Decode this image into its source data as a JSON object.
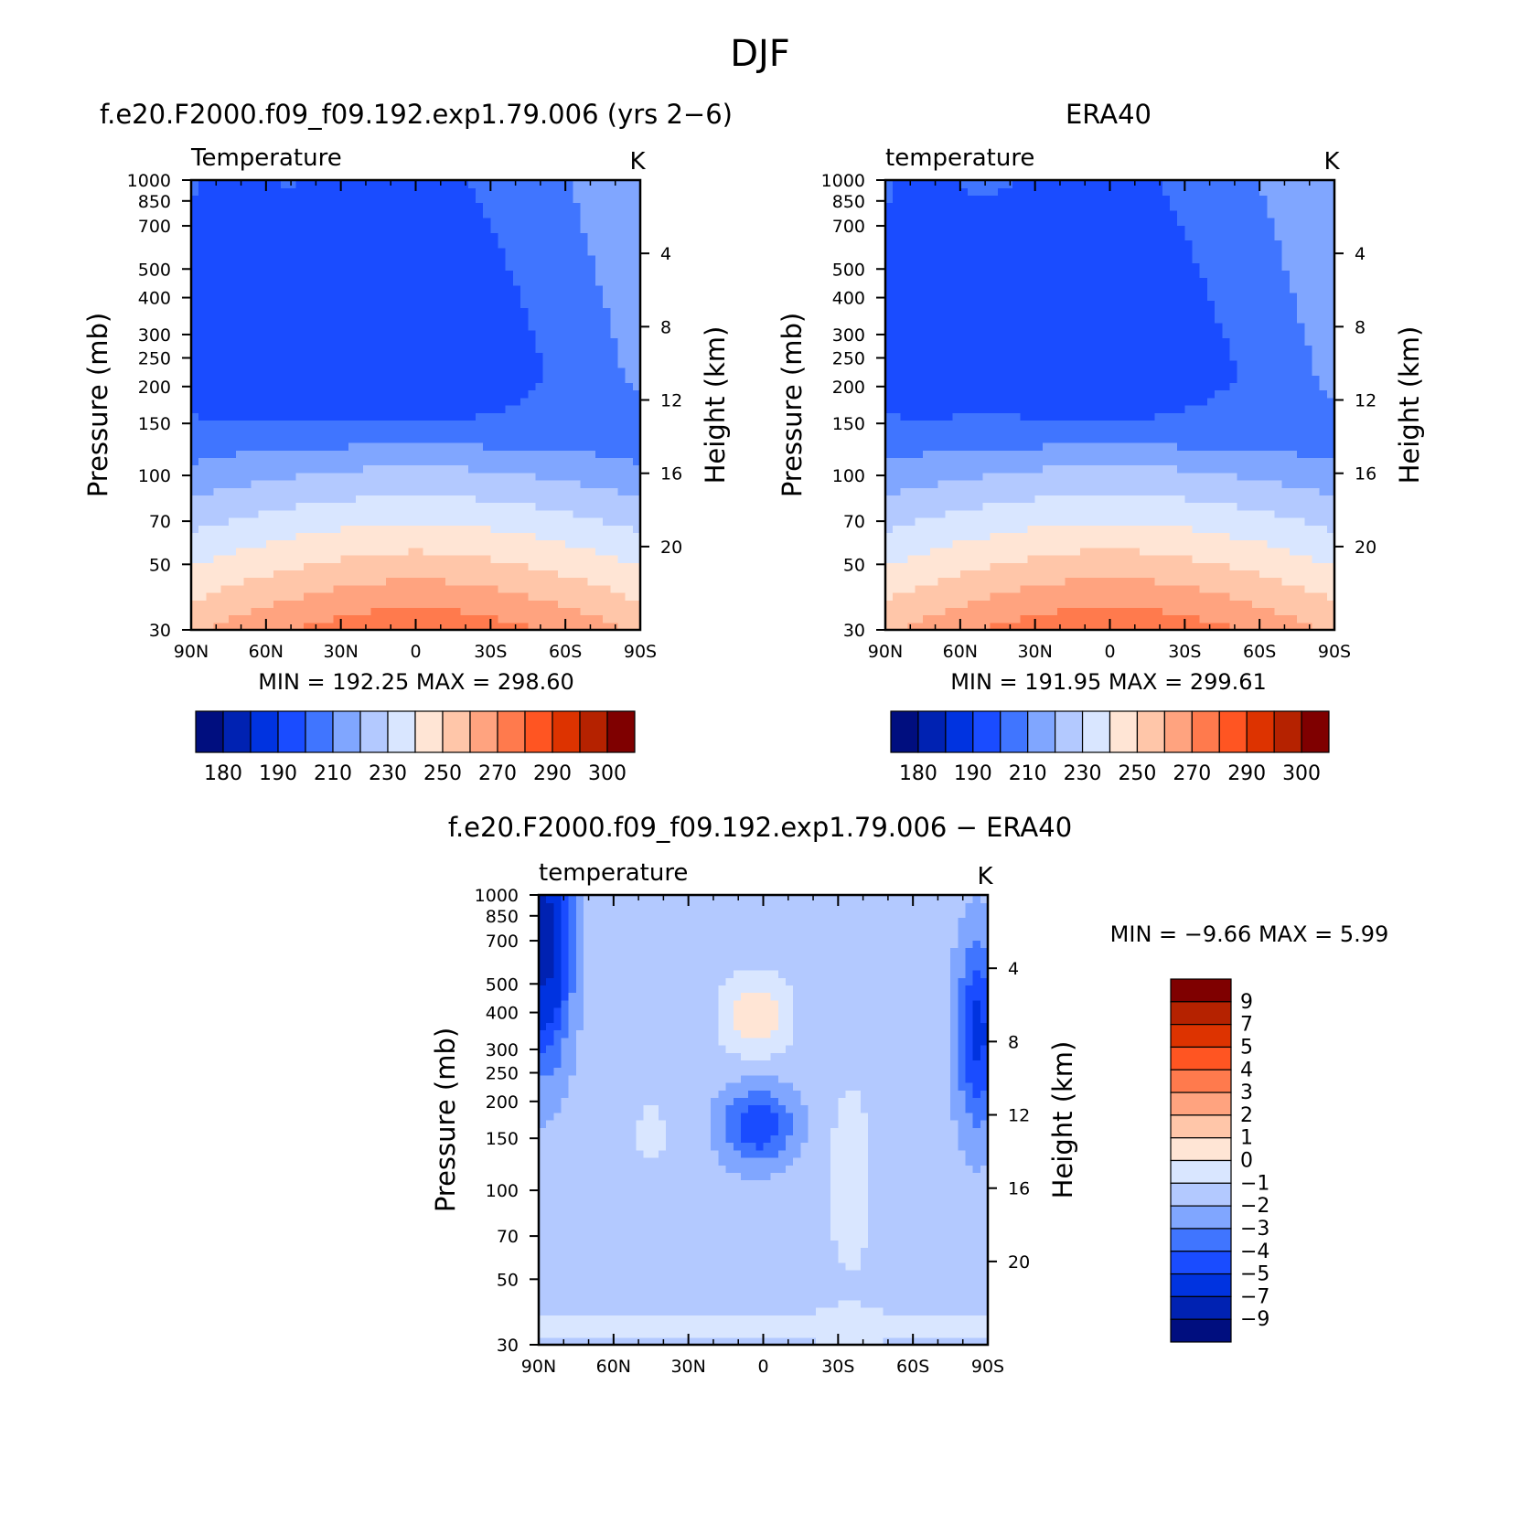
{
  "title": "DJF",
  "colors": {
    "abs_palette": [
      "#000e7f",
      "#0022b2",
      "#0033e0",
      "#1a4cff",
      "#4075ff",
      "#80a6ff",
      "#b3c9ff",
      "#d9e6ff",
      "#ffe5d5",
      "#ffc6a9",
      "#ffa37f",
      "#ff7a4d",
      "#ff5522",
      "#dd3300",
      "#b52200",
      "#7f0000"
    ],
    "diff_palette": [
      "#000e7f",
      "#0022b2",
      "#0033e0",
      "#1a4cff",
      "#4075ff",
      "#80a6ff",
      "#b3c9ff",
      "#d9e6ff",
      "#ffe5d5",
      "#ffc6a9",
      "#ffa37f",
      "#ff7a4d",
      "#ff5522",
      "#dd3300",
      "#b52200",
      "#7f0000"
    ]
  },
  "chart_data": [
    {
      "type": "heatmap",
      "panel_title": "f.e20.F2000.f09_f09.192.exp1.79.006 (yrs 2−6)",
      "left_label": "Temperature",
      "unit_label": "K",
      "ylabel": "Pressure (mb)",
      "ylabel_right": "Height (km)",
      "x_ticks": [
        "90N",
        "60N",
        "30N",
        "0",
        "30S",
        "60S",
        "90S"
      ],
      "y_ticks": [
        "30",
        "50",
        "70",
        "100",
        "150",
        "200",
        "250",
        "300",
        "400",
        "500",
        "700",
        "850",
        "1000"
      ],
      "y_ticks_right": [
        "20",
        "16",
        "12",
        "8",
        "4"
      ],
      "xlim": [
        90,
        -90
      ],
      "ylim_mb": [
        1000,
        30
      ],
      "min_max_text": "MIN  =  192.25    MAX  =  298.60",
      "min": 192.25,
      "max": 298.6,
      "colorbar_labels": [
        "180",
        "190",
        "210",
        "230",
        "250",
        "270",
        "290",
        "300"
      ],
      "colorbar_levels": [
        180,
        190,
        200,
        210,
        220,
        230,
        240,
        250,
        260,
        270,
        280,
        290,
        295,
        300,
        305
      ],
      "field": "model"
    },
    {
      "type": "heatmap",
      "panel_title": "ERA40",
      "left_label": "temperature",
      "unit_label": "K",
      "ylabel": "Pressure (mb)",
      "ylabel_right": "Height (km)",
      "x_ticks": [
        "90N",
        "60N",
        "30N",
        "0",
        "30S",
        "60S",
        "90S"
      ],
      "y_ticks": [
        "30",
        "50",
        "70",
        "100",
        "150",
        "200",
        "250",
        "300",
        "400",
        "500",
        "700",
        "850",
        "1000"
      ],
      "y_ticks_right": [
        "20",
        "16",
        "12",
        "8",
        "4"
      ],
      "xlim": [
        90,
        -90
      ],
      "ylim_mb": [
        1000,
        30
      ],
      "min_max_text": "MIN  =  191.95    MAX  =  299.61",
      "min": 191.95,
      "max": 299.61,
      "colorbar_labels": [
        "180",
        "190",
        "210",
        "230",
        "250",
        "270",
        "290",
        "300"
      ],
      "colorbar_levels": [
        180,
        190,
        200,
        210,
        220,
        230,
        240,
        250,
        260,
        270,
        280,
        290,
        295,
        300,
        305
      ],
      "field": "obs"
    },
    {
      "type": "heatmap",
      "panel_title": "f.e20.F2000.f09_f09.192.exp1.79.006  −  ERA40",
      "left_label": "temperature",
      "unit_label": "K",
      "ylabel": "Pressure (mb)",
      "ylabel_right": "Height (km)",
      "x_ticks": [
        "90N",
        "60N",
        "30N",
        "0",
        "30S",
        "60S",
        "90S"
      ],
      "y_ticks": [
        "30",
        "50",
        "70",
        "100",
        "150",
        "200",
        "250",
        "300",
        "400",
        "500",
        "700",
        "850",
        "1000"
      ],
      "y_ticks_right": [
        "20",
        "16",
        "12",
        "8",
        "4"
      ],
      "xlim": [
        90,
        -90
      ],
      "ylim_mb": [
        1000,
        30
      ],
      "min_max_text": "MIN  =    −9.66    MAX  =     5.99",
      "min": -9.66,
      "max": 5.99,
      "colorbar_labels": [
        "9",
        "7",
        "5",
        "4",
        "3",
        "2",
        "1",
        "0",
        "−1",
        "−2",
        "−3",
        "−4",
        "−5",
        "−7",
        "−9"
      ],
      "colorbar_levels": [
        -9,
        -7,
        -5,
        -4,
        -3,
        -2,
        -1,
        0,
        1,
        2,
        3,
        4,
        5,
        7,
        9
      ],
      "field": "diff"
    }
  ]
}
